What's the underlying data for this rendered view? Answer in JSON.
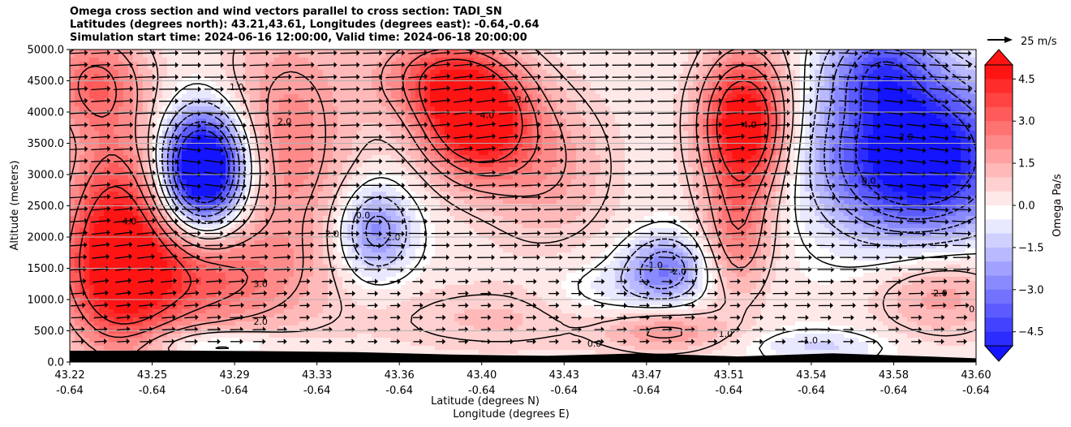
{
  "title_lines": [
    "Omega cross section and wind vectors parallel to cross section: TADI_SN",
    "Latitudes (degrees north): 43.21,43.61, Longitudes (degrees east): -0.64,-0.64",
    "Simulation start time: 2024-06-16 12:00:00, Valid time: 2024-06-18 20:00:00"
  ],
  "colors": {
    "positive_strong": "#ff1010",
    "negative_strong": "#1010ff",
    "neutral": "#ffffff",
    "terrain": "#000000",
    "grid": "#b0b0b0"
  },
  "chart_data": {
    "type": "heatmap",
    "subtype": "filled contour cross-section with wind vectors",
    "xlabel_lines": [
      "Latitude (degrees N)",
      "Longitude (degrees E)"
    ],
    "ylabel": "Altitude (meters)",
    "ylim": [
      0,
      5000
    ],
    "yticks": [
      "0.0",
      "500.0",
      "1000.0",
      "1500.0",
      "2000.0",
      "2500.0",
      "3000.0",
      "3500.0",
      "4000.0",
      "4500.0",
      "5000.0"
    ],
    "xticks": [
      {
        "lat": "43.22",
        "lon": "-0.64"
      },
      {
        "lat": "43.25",
        "lon": "-0.64"
      },
      {
        "lat": "43.29",
        "lon": "-0.64"
      },
      {
        "lat": "43.33",
        "lon": "-0.64"
      },
      {
        "lat": "43.36",
        "lon": "-0.64"
      },
      {
        "lat": "43.40",
        "lon": "-0.64"
      },
      {
        "lat": "43.43",
        "lon": "-0.64"
      },
      {
        "lat": "43.47",
        "lon": "-0.64"
      },
      {
        "lat": "43.51",
        "lon": "-0.64"
      },
      {
        "lat": "43.54",
        "lon": "-0.64"
      },
      {
        "lat": "43.58",
        "lon": "-0.64"
      },
      {
        "lat": "43.60",
        "lon": "-0.64"
      }
    ],
    "grid": "horizontal",
    "colorbar": {
      "label": "Omega Pa/s",
      "range": [
        -5,
        5
      ],
      "ticks": [
        "4.5",
        "3.0",
        "1.5",
        "0.0",
        "−1.5",
        "−3.0",
        "−4.5"
      ],
      "extend": "both"
    },
    "quiver_key": "25 m/s",
    "features": [
      {
        "kind": "max",
        "lat": 43.24,
        "alt": 1900,
        "omega": 4.5
      },
      {
        "kind": "min",
        "lat": 43.275,
        "alt": 3100,
        "omega": -4.5
      },
      {
        "kind": "max",
        "lat": 43.39,
        "alt": 3800,
        "omega": 4.5
      },
      {
        "kind": "min",
        "lat": 43.35,
        "alt": 2100,
        "omega": -2.0
      },
      {
        "kind": "max",
        "lat": 43.5,
        "alt": 3800,
        "omega": 4.5
      },
      {
        "kind": "min",
        "lat": 43.47,
        "alt": 1500,
        "omega": -2.5
      },
      {
        "kind": "min",
        "lat": 43.57,
        "alt": 3300,
        "omega": -5.0
      }
    ],
    "contour_labels": [
      "4.0",
      "3.0",
      "2.0",
      "1.0",
      "0.0",
      "-1.0",
      "-2.0"
    ]
  }
}
